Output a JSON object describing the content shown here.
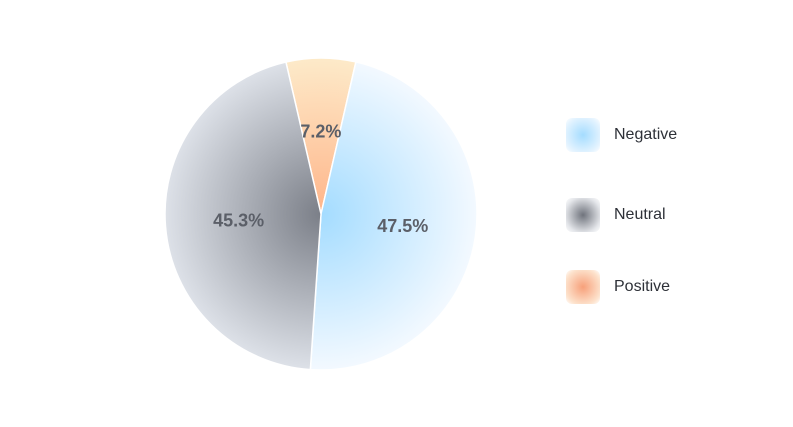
{
  "chart_data": {
    "type": "pie",
    "categories": [
      "Negative",
      "Neutral",
      "Positive"
    ],
    "values": [
      47.5,
      45.3,
      7.2
    ],
    "value_labels": [
      "47.5%",
      "45.3%",
      "7.2%"
    ],
    "colors": {
      "Negative": {
        "center": "#a4dcff",
        "edge": "#f3f9ff"
      },
      "Neutral": {
        "center": "#7b7f88",
        "edge": "#dde1e8"
      },
      "Positive": {
        "center": "#ffb58a",
        "edge": "#fdeac9"
      }
    },
    "legend": {
      "position": "right",
      "items": [
        {
          "label": "Negative",
          "swatch_center": "#a4dcff",
          "swatch_edge": "#e3f3ff"
        },
        {
          "label": "Neutral",
          "swatch_center": "#6f737c",
          "swatch_edge": "#e4e6ea"
        },
        {
          "label": "Positive",
          "swatch_center": "#f7a07a",
          "swatch_edge": "#fde2cc"
        }
      ]
    }
  }
}
